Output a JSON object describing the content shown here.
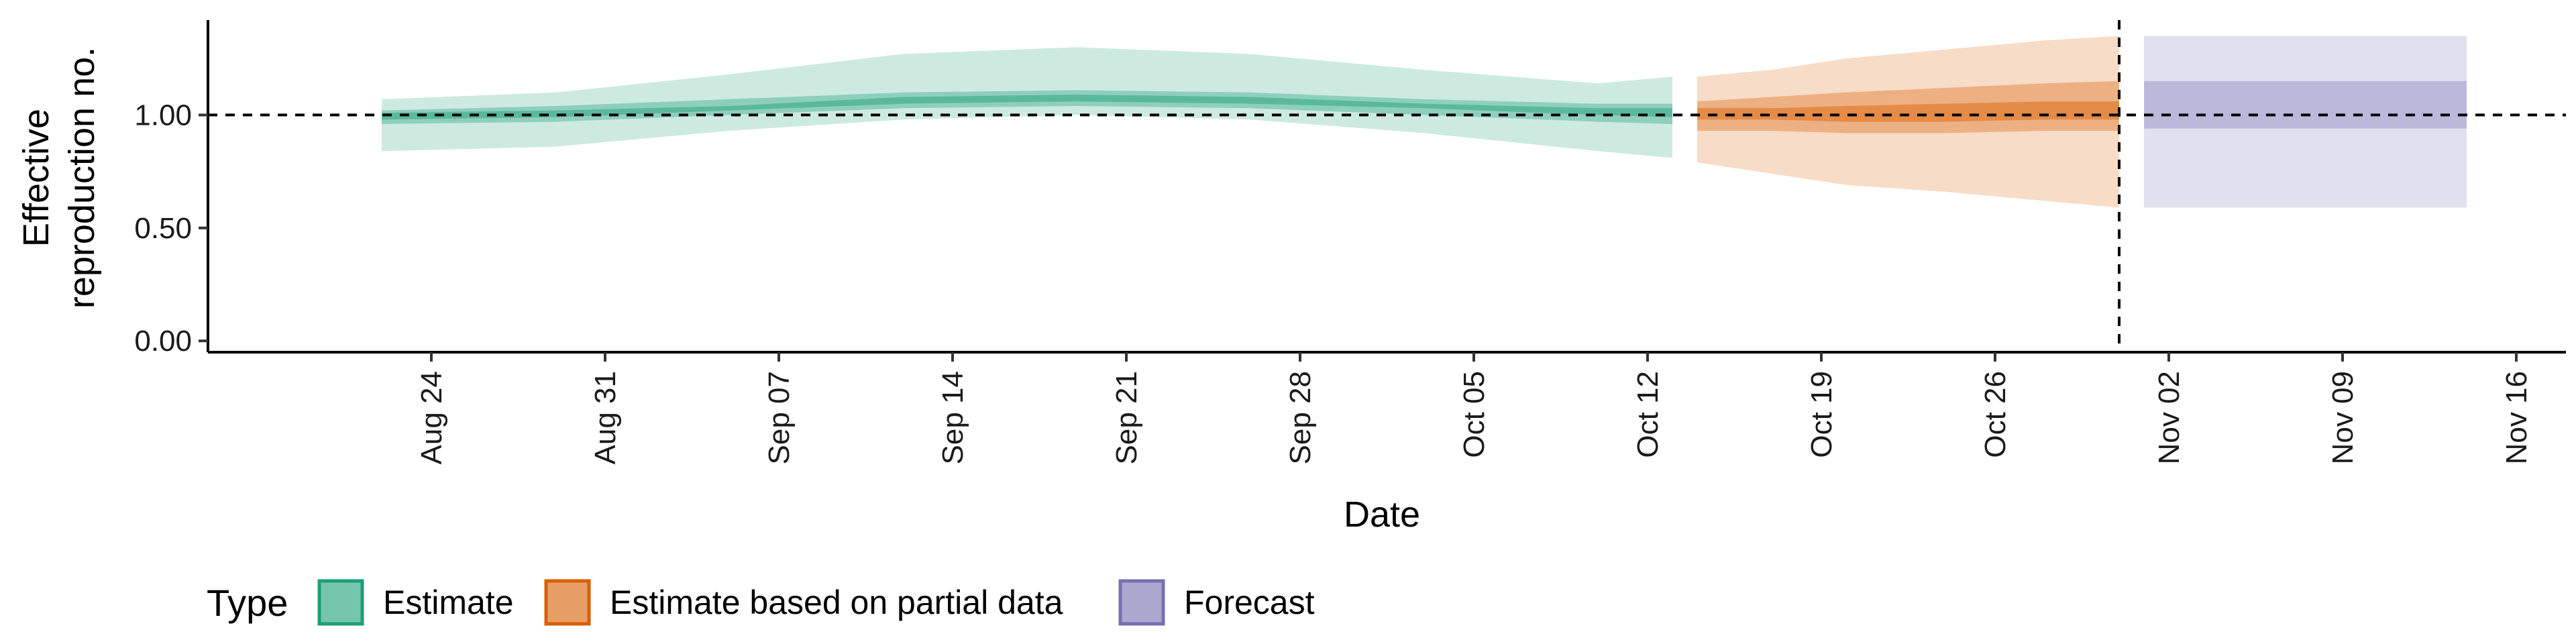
{
  "chart_data": {
    "type": "area",
    "xlabel": "Date",
    "ylabel_lines": [
      "Effective",
      "reproduction no."
    ],
    "xlim": [
      "2021-08-15",
      "2021-11-18"
    ],
    "ylim": [
      -0.05,
      1.42
    ],
    "y_ticks": [
      {
        "value": 0.0,
        "label": "0.00"
      },
      {
        "value": 0.5,
        "label": "0.50"
      },
      {
        "value": 1.0,
        "label": "1.00"
      }
    ],
    "x_ticks": [
      {
        "date": "2021-08-24",
        "label": "Aug 24"
      },
      {
        "date": "2021-08-31",
        "label": "Aug 31"
      },
      {
        "date": "2021-09-07",
        "label": "Sep 07"
      },
      {
        "date": "2021-09-14",
        "label": "Sep 14"
      },
      {
        "date": "2021-09-21",
        "label": "Sep 21"
      },
      {
        "date": "2021-09-28",
        "label": "Sep 28"
      },
      {
        "date": "2021-10-05",
        "label": "Oct 05"
      },
      {
        "date": "2021-10-12",
        "label": "Oct 12"
      },
      {
        "date": "2021-10-19",
        "label": "Oct 19"
      },
      {
        "date": "2021-10-26",
        "label": "Oct 26"
      },
      {
        "date": "2021-11-02",
        "label": "Nov 02"
      },
      {
        "date": "2021-11-09",
        "label": "Nov 09"
      },
      {
        "date": "2021-11-16",
        "label": "Nov 16"
      }
    ],
    "reference_hline": 1.0,
    "reference_vline": "2021-10-31",
    "grid": false,
    "legend": {
      "position": "bottom-left",
      "title": "Type",
      "entries": [
        {
          "label": "Estimate",
          "color": "#1b9e77"
        },
        {
          "label": "Estimate based on partial data",
          "color": "#d95f02"
        },
        {
          "label": "Forecast",
          "color": "#7570b3"
        }
      ]
    },
    "series": [
      {
        "type": "Estimate",
        "color": "#1b9e77",
        "x": [
          "2021-08-22",
          "2021-08-29",
          "2021-09-05",
          "2021-09-12",
          "2021-09-19",
          "2021-09-26",
          "2021-10-03",
          "2021-10-10",
          "2021-10-13"
        ],
        "lower_90": [
          0.84,
          0.86,
          0.93,
          0.98,
          1.0,
          0.98,
          0.92,
          0.84,
          0.81
        ],
        "upper_90": [
          1.07,
          1.1,
          1.18,
          1.27,
          1.3,
          1.27,
          1.2,
          1.14,
          1.17
        ],
        "lower_50": [
          0.96,
          0.97,
          1.0,
          1.03,
          1.04,
          1.03,
          1.0,
          0.97,
          0.96
        ],
        "upper_50": [
          1.02,
          1.04,
          1.07,
          1.1,
          1.11,
          1.1,
          1.07,
          1.05,
          1.05
        ],
        "lower_20": [
          0.98,
          0.99,
          1.02,
          1.05,
          1.06,
          1.05,
          1.03,
          1.0,
          0.99
        ],
        "upper_20": [
          1.01,
          1.02,
          1.04,
          1.08,
          1.09,
          1.08,
          1.05,
          1.03,
          1.03
        ]
      },
      {
        "type": "Estimate based on partial data",
        "color": "#d95f02",
        "x": [
          "2021-10-14",
          "2021-10-17",
          "2021-10-20",
          "2021-10-24",
          "2021-10-28",
          "2021-10-31"
        ],
        "lower_90": [
          0.79,
          0.74,
          0.69,
          0.66,
          0.62,
          0.59
        ],
        "upper_90": [
          1.17,
          1.2,
          1.25,
          1.29,
          1.33,
          1.35
        ],
        "lower_50": [
          0.93,
          0.93,
          0.92,
          0.92,
          0.93,
          0.93
        ],
        "upper_50": [
          1.06,
          1.08,
          1.1,
          1.12,
          1.14,
          1.15
        ],
        "lower_20": [
          0.98,
          0.98,
          0.97,
          0.97,
          0.98,
          0.98
        ],
        "upper_20": [
          1.03,
          1.03,
          1.04,
          1.05,
          1.06,
          1.06
        ]
      },
      {
        "type": "Forecast",
        "color": "#7570b3",
        "x": [
          "2021-11-01",
          "2021-11-14"
        ],
        "lower_90": [
          0.59,
          0.59
        ],
        "upper_90": [
          1.35,
          1.35
        ],
        "lower_50": [
          0.94,
          0.94
        ],
        "upper_50": [
          1.15,
          1.15
        ]
      }
    ]
  }
}
